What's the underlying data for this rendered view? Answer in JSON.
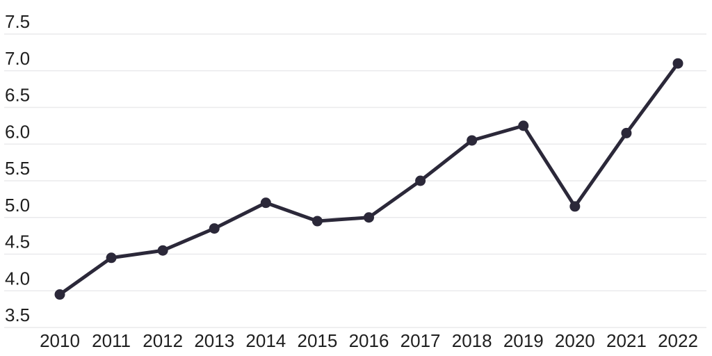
{
  "chart_data": {
    "type": "line",
    "title": "",
    "xlabel": "",
    "ylabel": "",
    "categories": [
      "2010",
      "2011",
      "2012",
      "2013",
      "2014",
      "2015",
      "2016",
      "2017",
      "2018",
      "2019",
      "2020",
      "2021",
      "2022"
    ],
    "series": [
      {
        "name": "value",
        "values": [
          3.95,
          4.45,
          4.55,
          4.85,
          5.2,
          4.95,
          5.0,
          5.5,
          6.05,
          6.25,
          5.15,
          6.15,
          7.1
        ]
      }
    ],
    "ylim": [
      3.5,
      7.5
    ],
    "y_tick_step": 0.5,
    "y_tick_labels": [
      "3.5",
      "4.0",
      "4.5",
      "5.0",
      "5.5",
      "6.0",
      "6.5",
      "7.0",
      "7.5"
    ],
    "grid": "horizontal",
    "legend": "none",
    "marker": "circle",
    "colors": {
      "line": "#2b2839",
      "marker": "#2b2839",
      "gridline": "#eaeaec",
      "tick_text": "#1f1f1f",
      "background": "#ffffff"
    }
  }
}
